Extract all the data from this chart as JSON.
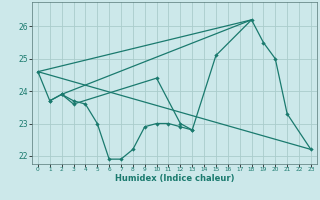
{
  "title": "",
  "xlabel": "Humidex (Indice chaleur)",
  "background_color": "#cce8ea",
  "grid_color": "#aacccc",
  "line_color": "#1a7a6e",
  "xlim": [
    -0.5,
    23.5
  ],
  "ylim": [
    21.75,
    26.75
  ],
  "yticks": [
    22,
    23,
    24,
    25,
    26
  ],
  "xticks": [
    0,
    1,
    2,
    3,
    4,
    5,
    6,
    7,
    8,
    9,
    10,
    11,
    12,
    13,
    14,
    15,
    16,
    17,
    18,
    19,
    20,
    21,
    22,
    23
  ],
  "line1_x": [
    0,
    1,
    2,
    3,
    10,
    12,
    13,
    15,
    18,
    19,
    20,
    21,
    23
  ],
  "line1_y": [
    24.6,
    23.7,
    23.9,
    23.6,
    24.4,
    23.0,
    22.8,
    25.1,
    26.2,
    25.5,
    25.0,
    23.3,
    22.2
  ],
  "line2_x": [
    1,
    2,
    3,
    4,
    5,
    6,
    7,
    8,
    9,
    10,
    11,
    12,
    13
  ],
  "line2_y": [
    23.7,
    23.9,
    23.7,
    23.6,
    23.0,
    21.9,
    21.9,
    22.2,
    22.9,
    23.0,
    23.0,
    22.9,
    22.8
  ],
  "line3_x": [
    0,
    18
  ],
  "line3_y": [
    24.6,
    26.2
  ],
  "line4_x": [
    0,
    23
  ],
  "line4_y": [
    24.6,
    22.2
  ],
  "line5_x": [
    2,
    18
  ],
  "line5_y": [
    23.9,
    26.2
  ]
}
